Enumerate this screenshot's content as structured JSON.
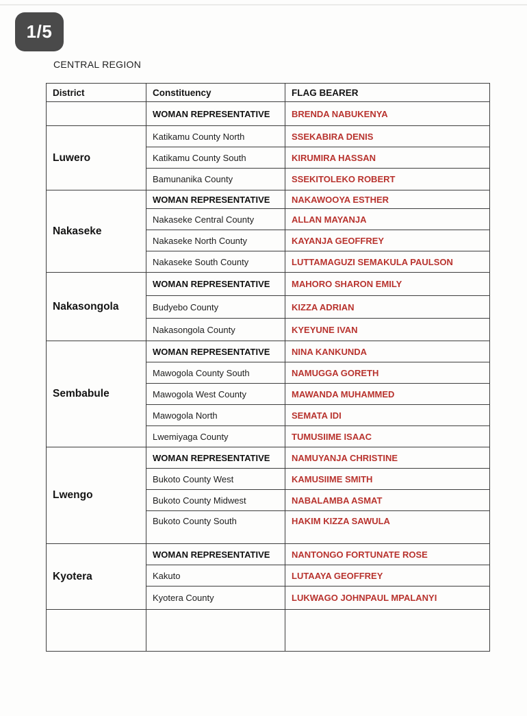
{
  "viewer": {
    "page_indicator": "1/5"
  },
  "document": {
    "title": "CENTRAL REGION",
    "table": {
      "columns": [
        "District",
        "Constituency",
        "FLAG BEARER"
      ],
      "sections": [
        {
          "district": "",
          "rows": [
            {
              "constituency": "WOMAN REPRESENTATIVE",
              "flag_bearer": "BRENDA NABUKENYA",
              "is_woman_rep": true
            }
          ]
        },
        {
          "district": "Luwero",
          "rows": [
            {
              "constituency": "Katikamu County North",
              "flag_bearer": "SSEKABIRA DENIS",
              "is_woman_rep": false
            },
            {
              "constituency": "Katikamu County South",
              "flag_bearer": "KIRUMIRA HASSAN",
              "is_woman_rep": false
            },
            {
              "constituency": "Bamunanika County",
              "flag_bearer": "SSEKITOLEKO ROBERT",
              "is_woman_rep": false
            }
          ]
        },
        {
          "district": "Nakaseke",
          "rows": [
            {
              "constituency": "WOMAN REPRESENTATIVE",
              "flag_bearer": "NAKAWOOYA ESTHER",
              "is_woman_rep": true
            },
            {
              "constituency": "Nakaseke Central County",
              "flag_bearer": "ALLAN MAYANJA",
              "is_woman_rep": false
            },
            {
              "constituency": "Nakaseke North County",
              "flag_bearer": "KAYANJA GEOFFREY",
              "is_woman_rep": false
            },
            {
              "constituency": "Nakaseke South County",
              "flag_bearer": "LUTTAMAGUZI SEMAKULA PAULSON",
              "is_woman_rep": false
            }
          ]
        },
        {
          "district": "Nakasongola",
          "rows": [
            {
              "constituency": "WOMAN REPRESENTATIVE",
              "flag_bearer": "MAHORO SHARON EMILY",
              "is_woman_rep": true
            },
            {
              "constituency": "Budyebo County",
              "flag_bearer": "KIZZA ADRIAN",
              "is_woman_rep": false
            },
            {
              "constituency": "Nakasongola County",
              "flag_bearer": "KYEYUNE IVAN",
              "is_woman_rep": false
            }
          ]
        },
        {
          "district": "Sembabule",
          "rows": [
            {
              "constituency": "WOMAN REPRESENTATIVE",
              "flag_bearer": "NINA KANKUNDA",
              "is_woman_rep": true
            },
            {
              "constituency": "Mawogola County South",
              "flag_bearer": "NAMUGGA GORETH",
              "is_woman_rep": false
            },
            {
              "constituency": "Mawogola West County",
              "flag_bearer": "MAWANDA MUHAMMED",
              "is_woman_rep": false
            },
            {
              "constituency": "Mawogola North",
              "flag_bearer": "SEMATA IDI",
              "is_woman_rep": false
            },
            {
              "constituency": "Lwemiyaga County",
              "flag_bearer": "TUMUSIIME ISAAC",
              "is_woman_rep": false
            }
          ]
        },
        {
          "district": "Lwengo",
          "rows": [
            {
              "constituency": "WOMAN REPRESENTATIVE",
              "flag_bearer": "NAMUYANJA CHRISTINE",
              "is_woman_rep": true
            },
            {
              "constituency": "Bukoto County West",
              "flag_bearer": "KAMUSIIME SMITH",
              "is_woman_rep": false
            },
            {
              "constituency": "Bukoto County Midwest",
              "flag_bearer": "NABALAMBA ASMAT",
              "is_woman_rep": false
            },
            {
              "constituency": "Bukoto County South",
              "flag_bearer": "HAKIM KIZZA SAWULA",
              "is_woman_rep": false
            }
          ]
        },
        {
          "district": "Kyotera",
          "rows": [
            {
              "constituency": "WOMAN REPRESENTATIVE",
              "flag_bearer": "NANTONGO FORTUNATE ROSE",
              "is_woman_rep": true
            },
            {
              "constituency": "Kakuto",
              "flag_bearer": "LUTAAYA GEOFFREY",
              "is_woman_rep": false
            },
            {
              "constituency": "Kyotera County",
              "flag_bearer": "LUKWAGO JOHNPAUL MPALANYI",
              "is_woman_rep": false
            }
          ]
        },
        {
          "district": "",
          "rows": [
            {
              "constituency": "",
              "flag_bearer": "",
              "is_woman_rep": false
            }
          ]
        }
      ]
    }
  },
  "colors": {
    "flag_bearer_red": "#b8332e",
    "badge_bg": "#4a4a4a",
    "table_border": "#3d3d3d"
  }
}
